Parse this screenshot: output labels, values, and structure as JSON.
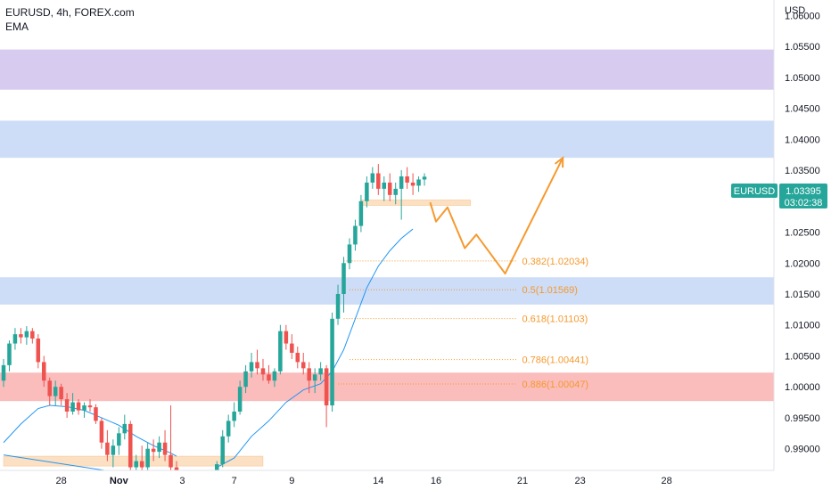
{
  "header": {
    "symbol_line": "EURUSD, 4h, FOREX.com",
    "indicator": "EMA"
  },
  "price_axis": {
    "currency": "USD"
  },
  "price_badge": {
    "symbol": "EURUSD",
    "price": "1.03395",
    "countdown": "03:02:38",
    "color": "#26a69a"
  },
  "colors": {
    "up": "#26a69a",
    "down": "#ef5350",
    "ema": "#2196f3",
    "fib": "#f59a2f",
    "projection": "#f59a2f",
    "zone_purple": "#d7ccef",
    "zone_blue": "#cddcf7",
    "zone_red": "#fbbcbc",
    "zone_orange": "#fbe0c4"
  },
  "chart_data": {
    "type": "candlestick",
    "ylim": [
      0.9865,
      1.0625
    ],
    "xlim": [
      -3,
      130
    ],
    "x_ticks": [
      {
        "label": "28",
        "x": 7
      },
      {
        "label": "Nov",
        "x": 17
      },
      {
        "label": "3",
        "x": 28
      },
      {
        "label": "7",
        "x": 37
      },
      {
        "label": "9",
        "x": 47
      },
      {
        "label": "14",
        "x": 62
      },
      {
        "label": "16",
        "x": 72
      },
      {
        "label": "21",
        "x": 87
      },
      {
        "label": "23",
        "x": 97
      },
      {
        "label": "28",
        "x": 112
      }
    ],
    "y_ticks": [
      "1.06000",
      "1.05500",
      "1.05000",
      "1.04500",
      "1.04000",
      "1.03500",
      "1.03000",
      "1.02500",
      "1.02000",
      "1.01500",
      "1.01000",
      "1.00500",
      "1.00000",
      "0.99500",
      "0.99000"
    ],
    "candles": [
      [
        -3,
        1.001,
        1.0045,
        1.0,
        1.0035
      ],
      [
        -2,
        1.0035,
        1.0075,
        1.0025,
        1.007
      ],
      [
        -1,
        1.007,
        1.0095,
        1.006,
        1.0085
      ],
      [
        0,
        1.0085,
        1.0095,
        1.007,
        1.008
      ],
      [
        1,
        1.008,
        1.0098,
        1.0068,
        1.009
      ],
      [
        2,
        1.009,
        1.0095,
        1.007,
        1.0078
      ],
      [
        3,
        1.0078,
        1.0085,
        1.003,
        1.004
      ],
      [
        4,
        1.004,
        1.005,
        1.0,
        1.001
      ],
      [
        5,
        1.001,
        1.0015,
        0.997,
        0.9985
      ],
      [
        6,
        0.9985,
        1.001,
        0.997,
        1.0
      ],
      [
        7,
        1.0,
        1.0005,
        0.997,
        0.998
      ],
      [
        8,
        0.998,
        0.999,
        0.995,
        0.996
      ],
      [
        9,
        0.996,
        0.999,
        0.9955,
        0.9975
      ],
      [
        10,
        0.9975,
        0.998,
        0.9955,
        0.9962
      ],
      [
        11,
        0.9962,
        0.9975,
        0.995,
        0.997
      ],
      [
        12,
        0.997,
        0.998,
        0.996,
        0.9967
      ],
      [
        13,
        0.9967,
        0.9972,
        0.994,
        0.9945
      ],
      [
        14,
        0.9945,
        0.995,
        0.99,
        0.991
      ],
      [
        15,
        0.991,
        0.993,
        0.988,
        0.989
      ],
      [
        16,
        0.989,
        0.9915,
        0.987,
        0.9905
      ],
      [
        17,
        0.9905,
        0.9935,
        0.989,
        0.9925
      ],
      [
        18,
        0.9925,
        0.9955,
        0.9915,
        0.994
      ],
      [
        19,
        0.994,
        0.9945,
        0.986,
        0.987
      ],
      [
        20,
        0.987,
        0.989,
        0.9855,
        0.988
      ],
      [
        21,
        0.988,
        0.9905,
        0.986,
        0.987
      ],
      [
        22,
        0.987,
        0.991,
        0.9865,
        0.99
      ],
      [
        23,
        0.99,
        0.9915,
        0.988,
        0.9895
      ],
      [
        24,
        0.9895,
        0.992,
        0.9885,
        0.991
      ],
      [
        25,
        0.991,
        0.993,
        0.988,
        0.989
      ],
      [
        26,
        0.989,
        0.997,
        0.986,
        0.987
      ],
      [
        27,
        0.987,
        0.988,
        0.985,
        0.986
      ],
      [
        34,
        0.9855,
        0.988,
        0.985,
        0.9875
      ],
      [
        35,
        0.9875,
        0.993,
        0.987,
        0.992
      ],
      [
        36,
        0.992,
        0.9955,
        0.991,
        0.9945
      ],
      [
        37,
        0.9945,
        0.9975,
        0.9935,
        0.996
      ],
      [
        38,
        0.996,
        1.001,
        0.9955,
        1.0
      ],
      [
        39,
        1.0,
        1.0035,
        0.999,
        1.0025
      ],
      [
        40,
        1.0025,
        1.0055,
        1.0015,
        1.004
      ],
      [
        41,
        1.004,
        1.006,
        1.002,
        1.003
      ],
      [
        42,
        1.003,
        1.0045,
        1.001,
        1.002
      ],
      [
        43,
        1.002,
        1.0035,
        1.0005,
        1.001
      ],
      [
        44,
        1.001,
        1.003,
        1.0,
        1.0025
      ],
      [
        45,
        1.0025,
        1.01,
        1.002,
        1.009
      ],
      [
        46,
        1.009,
        1.01,
        1.006,
        1.007
      ],
      [
        47,
        1.007,
        1.0085,
        1.0045,
        1.0055
      ],
      [
        48,
        1.0055,
        1.0065,
        1.003,
        1.004
      ],
      [
        49,
        1.004,
        1.0055,
        1.002,
        1.003
      ],
      [
        50,
        1.003,
        1.004,
        0.999,
        1.001
      ],
      [
        51,
        1.001,
        1.003,
        0.999,
        1.002
      ],
      [
        52,
        1.002,
        1.004,
        1.001,
        1.003
      ],
      [
        53,
        1.003,
        1.0035,
        0.9935,
        0.997
      ],
      [
        54,
        0.997,
        1.012,
        0.996,
        1.011
      ],
      [
        55,
        1.011,
        1.0165,
        1.01,
        1.015
      ],
      [
        56,
        1.015,
        1.021,
        1.012,
        1.02
      ],
      [
        57,
        1.02,
        1.024,
        1.019,
        1.023
      ],
      [
        58,
        1.023,
        1.027,
        1.022,
        1.026
      ],
      [
        59,
        1.026,
        1.031,
        1.025,
        1.03
      ],
      [
        60,
        1.03,
        1.034,
        1.029,
        1.033
      ],
      [
        61,
        1.033,
        1.0355,
        1.032,
        1.0345
      ],
      [
        62,
        1.0345,
        1.036,
        1.031,
        1.032
      ],
      [
        63,
        1.032,
        1.034,
        1.03,
        1.033
      ],
      [
        64,
        1.033,
        1.0345,
        1.03,
        1.031
      ],
      [
        65,
        1.031,
        1.033,
        1.0295,
        1.032
      ],
      [
        66,
        1.032,
        1.035,
        1.027,
        1.034
      ],
      [
        67,
        1.034,
        1.0355,
        1.032,
        1.033
      ],
      [
        68,
        1.033,
        1.0345,
        1.031,
        1.0325
      ],
      [
        69,
        1.0325,
        1.034,
        1.0315,
        1.0335
      ],
      [
        70,
        1.0335,
        1.0345,
        1.0325,
        1.03395
      ]
    ],
    "ema_values": [
      [
        -3,
        0.991
      ],
      [
        0,
        0.994
      ],
      [
        3,
        0.9965
      ],
      [
        5,
        0.997
      ],
      [
        8,
        0.9968
      ],
      [
        11,
        0.9962
      ],
      [
        14,
        0.995
      ],
      [
        17,
        0.9938
      ],
      [
        20,
        0.992
      ],
      [
        23,
        0.9905
      ],
      [
        26,
        0.9893
      ],
      [
        27,
        0.9888
      ],
      [
        34,
        0.987
      ],
      [
        37,
        0.9885
      ],
      [
        40,
        0.992
      ],
      [
        43,
        0.9945
      ],
      [
        46,
        0.9975
      ],
      [
        49,
        0.9995
      ],
      [
        52,
        1.0005
      ],
      [
        54,
        1.0025
      ],
      [
        56,
        1.006
      ],
      [
        58,
        1.011
      ],
      [
        60,
        1.016
      ],
      [
        62,
        1.0195
      ],
      [
        64,
        1.022
      ],
      [
        66,
        1.024
      ],
      [
        68,
        1.0255
      ]
    ],
    "ema_lower_line": [
      [
        -3,
        0.989
      ],
      [
        18,
        0.986
      ]
    ],
    "zones": [
      {
        "name": "purple",
        "y0": 1.048,
        "y1": 1.0545
      },
      {
        "name": "blue",
        "y0": 1.037,
        "y1": 1.043
      },
      {
        "name": "blue",
        "y0": 1.0133,
        "y1": 1.0177
      },
      {
        "name": "red",
        "y0": 0.9977,
        "y1": 1.0023
      }
    ],
    "small_zones": [
      {
        "name": "orange",
        "x0": 59,
        "x1": 78,
        "y0": 1.0293,
        "y1": 1.0302
      },
      {
        "name": "orange",
        "x0": -3,
        "x1": 42,
        "y0": 0.9872,
        "y1": 0.9888
      }
    ],
    "fib_levels": [
      {
        "label": "0.382(1.02034)",
        "value": 1.02034,
        "x0": 56,
        "x1": 86
      },
      {
        "label": "0.5(1.01569)",
        "value": 1.01569,
        "x0": 57,
        "x1": 86
      },
      {
        "label": "0.618(1.01103)",
        "value": 1.01103,
        "x0": 56,
        "x1": 86
      },
      {
        "label": "0.786(1.00441)",
        "value": 1.00441,
        "x0": 57,
        "x1": 86
      },
      {
        "label": "0.886(1.00047)",
        "value": 1.00047,
        "x0": 55,
        "x1": 86
      }
    ],
    "projection_path": [
      [
        71,
        1.0298
      ],
      [
        72,
        1.0267
      ],
      [
        74,
        1.029
      ],
      [
        77,
        1.0224
      ],
      [
        79,
        1.0246
      ],
      [
        84,
        1.0183
      ],
      [
        94,
        1.037
      ]
    ]
  }
}
